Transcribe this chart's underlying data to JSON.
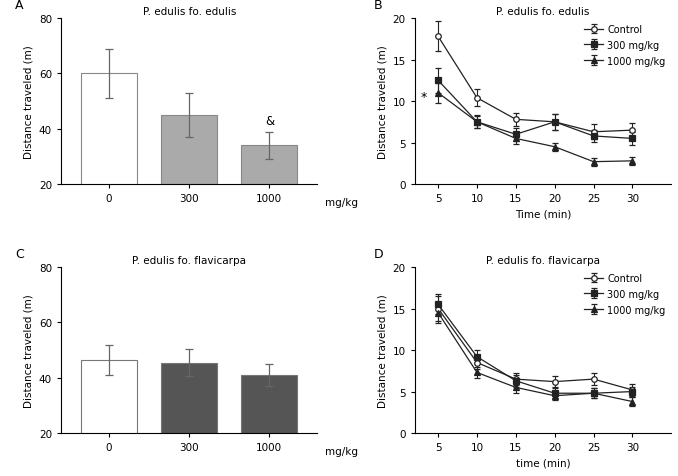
{
  "panel_A": {
    "title": "P. edulis fo. edulis",
    "label": "A",
    "categories": [
      "0",
      "300",
      "1000"
    ],
    "values": [
      60,
      45,
      34
    ],
    "errors": [
      9,
      8,
      5
    ],
    "colors": [
      "#ffffff",
      "#aaaaaa",
      "#aaaaaa"
    ],
    "bar_edge": "#888888",
    "ylim": [
      20,
      80
    ],
    "yticks": [
      20,
      40,
      60,
      80
    ],
    "ylabel": "Distance traveled (m)",
    "xlabel": "mg/kg",
    "sig_bar": "&",
    "sig_bar_idx": 2
  },
  "panel_B": {
    "title": "P. edulis fo. edulis",
    "label": "B",
    "time": [
      5,
      10,
      15,
      20,
      25,
      30
    ],
    "control": [
      17.8,
      10.4,
      7.8,
      7.5,
      6.3,
      6.5
    ],
    "control_err": [
      1.8,
      1.0,
      0.8,
      1.0,
      0.9,
      0.9
    ],
    "dose300": [
      12.5,
      7.5,
      6.0,
      7.5,
      5.8,
      5.5
    ],
    "dose300_err": [
      1.5,
      0.8,
      0.8,
      1.0,
      0.7,
      0.8
    ],
    "dose1000": [
      11.0,
      7.5,
      5.5,
      4.5,
      2.7,
      2.8
    ],
    "dose1000_err": [
      1.2,
      0.7,
      0.7,
      0.5,
      0.5,
      0.5
    ],
    "ylim": [
      0,
      20
    ],
    "yticks": [
      0,
      5,
      10,
      15,
      20
    ],
    "ylabel": "Distance traveled (m)",
    "xlabel": "Time (min)",
    "xlim": [
      2,
      35
    ],
    "xticks": [
      5,
      10,
      15,
      20,
      25,
      30
    ],
    "star_x": 3.2,
    "star_y": 10.5
  },
  "panel_C": {
    "title": "P. edulis fo. flavicarpa",
    "label": "C",
    "categories": [
      "0",
      "300",
      "1000"
    ],
    "values": [
      46.5,
      45.5,
      41.0
    ],
    "errors": [
      5.5,
      5.0,
      4.0
    ],
    "colors": [
      "#ffffff",
      "#555555",
      "#555555"
    ],
    "bar_edge": "#777777",
    "ylim": [
      20,
      80
    ],
    "yticks": [
      20,
      40,
      60,
      80
    ],
    "ylabel": "Distance traveled (m)",
    "xlabel": "mg/kg"
  },
  "panel_D": {
    "title": "P. edulis fo. flavicarpa",
    "label": "D",
    "time": [
      5,
      10,
      15,
      20,
      25,
      30
    ],
    "control": [
      15.0,
      8.5,
      6.5,
      6.2,
      6.5,
      5.2
    ],
    "control_err": [
      1.5,
      0.8,
      0.7,
      0.7,
      0.7,
      0.7
    ],
    "dose300": [
      15.5,
      9.2,
      6.3,
      4.8,
      4.8,
      5.0
    ],
    "dose300_err": [
      1.2,
      0.8,
      0.7,
      0.6,
      0.6,
      0.6
    ],
    "dose1000": [
      14.5,
      7.3,
      5.5,
      4.5,
      4.8,
      3.8
    ],
    "dose1000_err": [
      1.2,
      0.7,
      0.7,
      0.5,
      0.6,
      0.5
    ],
    "ylim": [
      0,
      20
    ],
    "yticks": [
      0,
      5,
      10,
      15,
      20
    ],
    "ylabel": "Distance traveled (m)",
    "xlabel": "time (min)",
    "xlim": [
      2,
      35
    ],
    "xticks": [
      5,
      10,
      15,
      20,
      25,
      30
    ]
  },
  "legend_B": {
    "control_label": "Control",
    "dose300_label": "300 mg/kg",
    "dose1000_label": "1000 mg/kg"
  },
  "fig_bg": "#ffffff",
  "line_color": "#222222",
  "fontsize": 7.5,
  "title_fontsize": 7.5
}
